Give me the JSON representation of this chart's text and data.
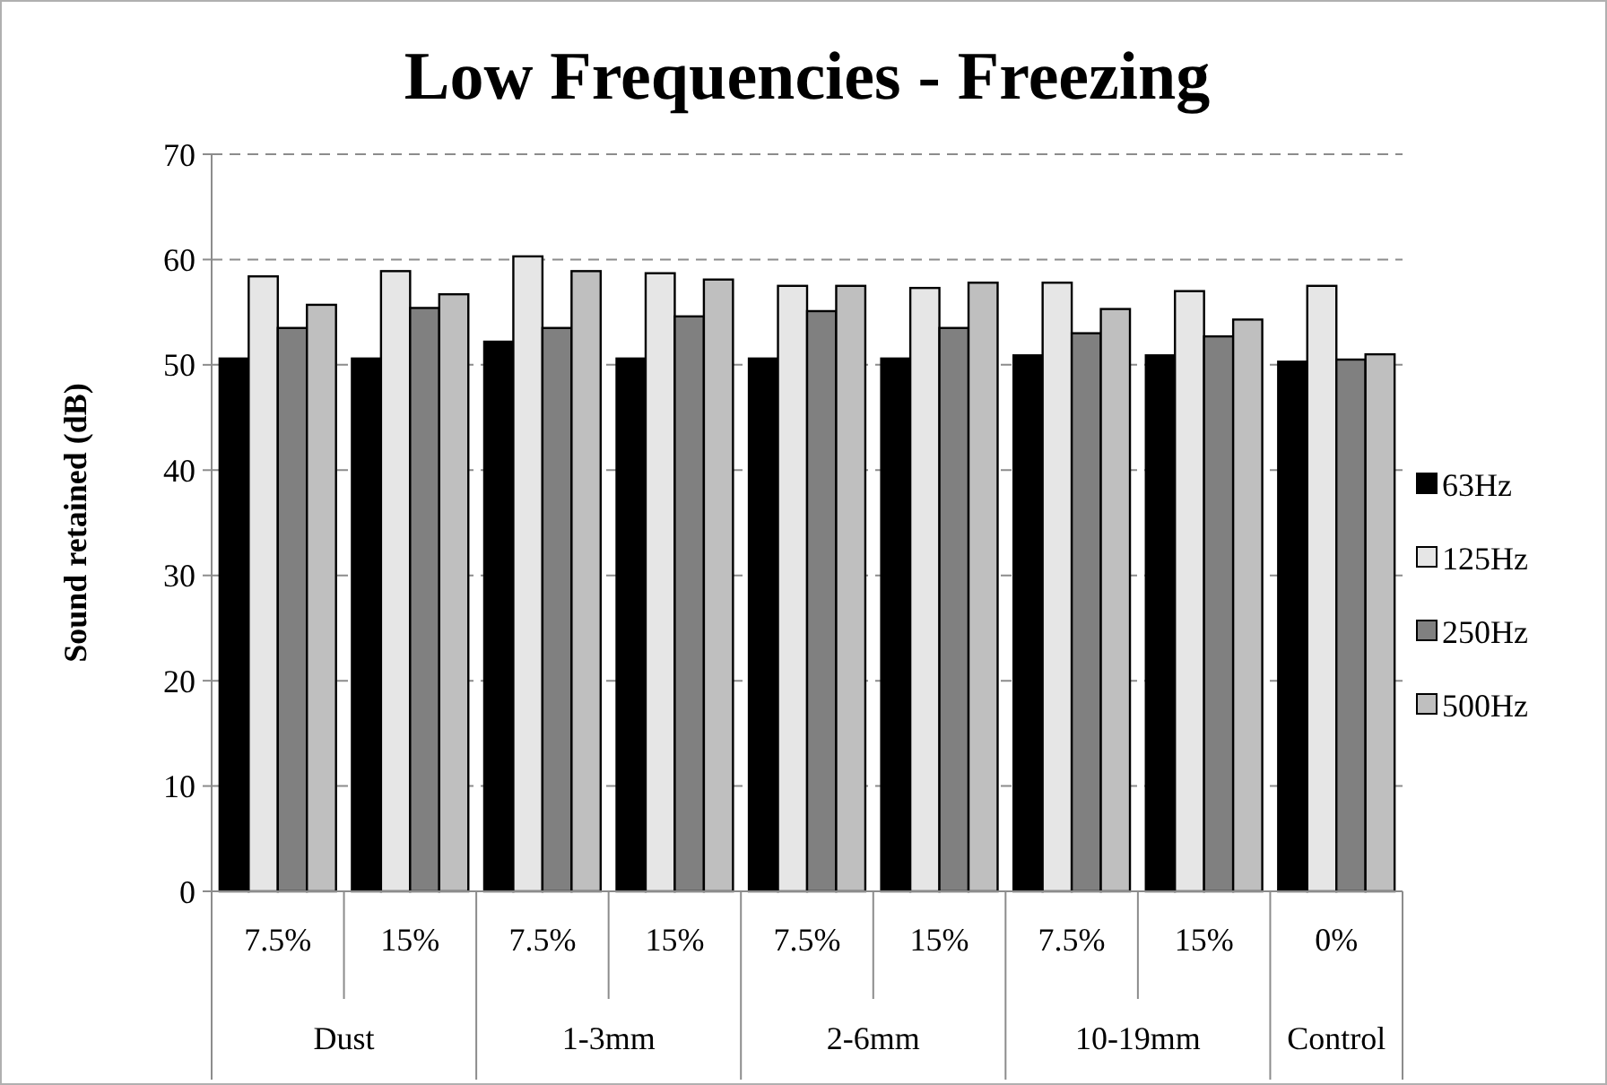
{
  "chart_data": {
    "type": "bar",
    "title": "Low Frequencies - Freezing",
    "ylabel": "Sound retained (dB)",
    "categories": [
      "7.5%",
      "15%",
      "7.5%",
      "15%",
      "7.5%",
      "15%",
      "7.5%",
      "15%",
      "0%"
    ],
    "annotations": [
      "Dust",
      "1-3mm",
      "2-6mm",
      "10-19mm",
      "Control"
    ],
    "series": [
      {
        "name": "63Hz",
        "color": "#000000",
        "values": [
          50.6,
          50.6,
          52.2,
          50.6,
          50.6,
          50.6,
          50.9,
          50.9,
          50.3
        ]
      },
      {
        "name": "125Hz",
        "color": "#e6e6e6",
        "values": [
          58.4,
          58.9,
          60.3,
          58.7,
          57.5,
          57.3,
          57.8,
          57.0,
          57.5
        ]
      },
      {
        "name": "250Hz",
        "color": "#808080",
        "values": [
          53.5,
          55.4,
          53.5,
          54.6,
          55.1,
          53.5,
          53.0,
          52.7,
          50.5
        ]
      },
      {
        "name": "500Hz",
        "color": "#bfbfbf",
        "values": [
          55.7,
          56.7,
          58.9,
          58.1,
          57.5,
          57.8,
          55.3,
          54.3,
          51.0
        ]
      }
    ],
    "ylim": [
      0,
      70
    ],
    "yticks": [
      0,
      10,
      20,
      30,
      40,
      50,
      60,
      70
    ],
    "grid": "y",
    "legend": "right"
  }
}
